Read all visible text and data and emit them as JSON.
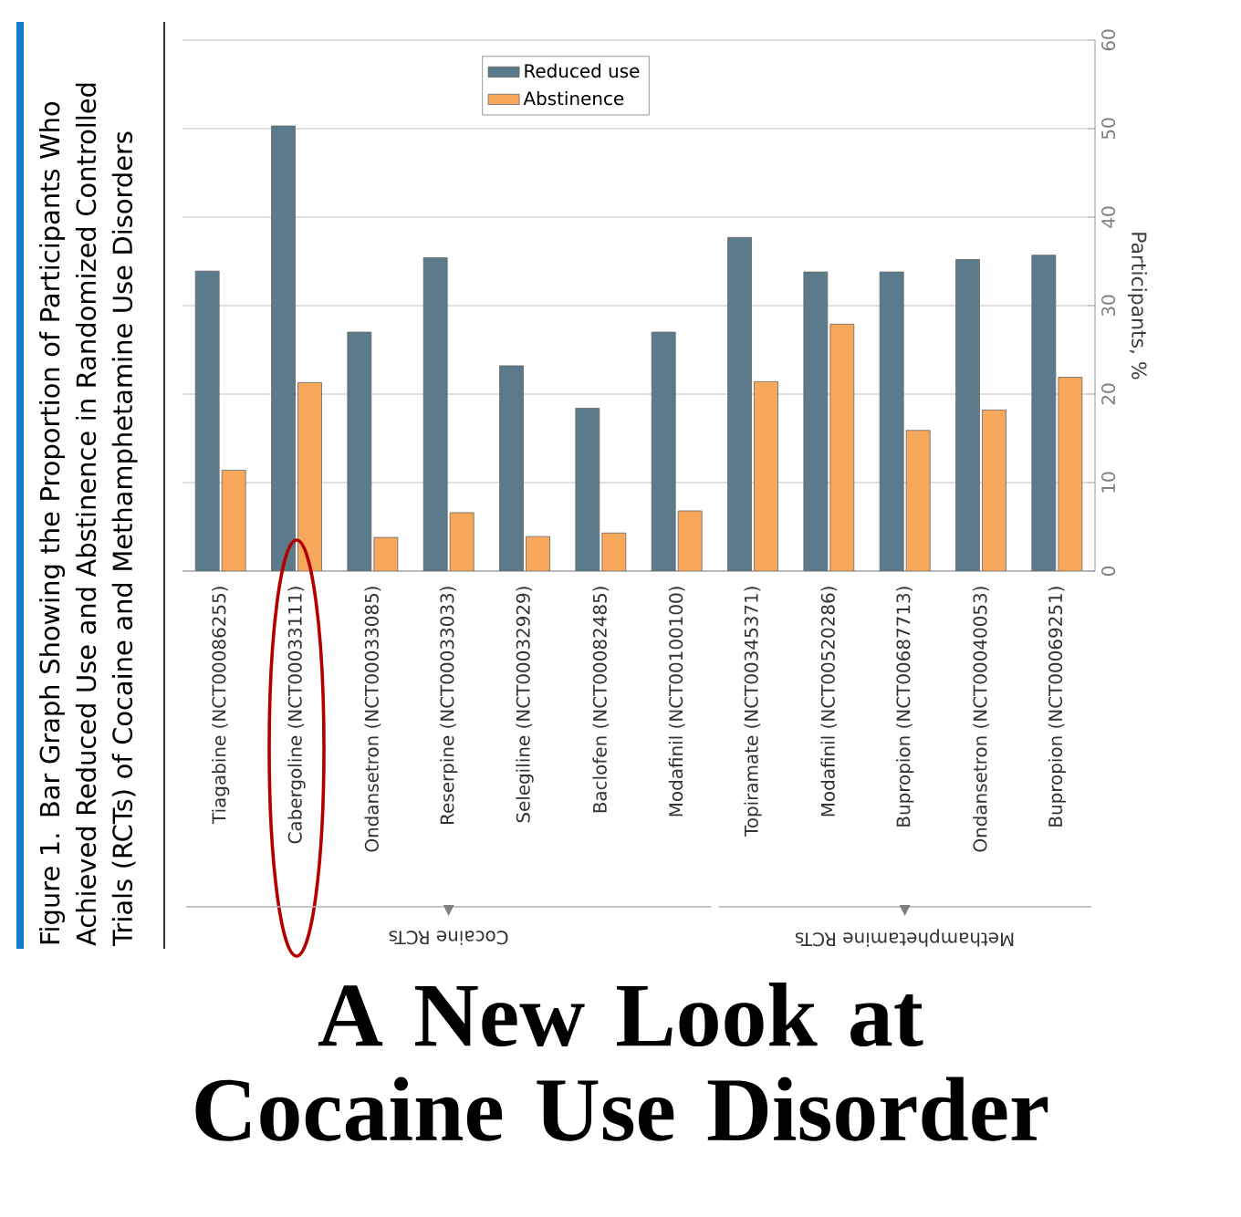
{
  "chart_data": {
    "type": "bar",
    "title": "A New Look at Cocaine Use Disorder",
    "subtitle": "Figure 1. Bar Graph Showing the Proportion of Participants Who Achieved Reduced Use and Abstinence in Randomized Controlled Trials (RCTs) of Cocaine and Methamphetamine Use Disorders",
    "ylabel": "Participants, %",
    "categories": [
      "Tiagabine (NCT00086255)",
      "Cabergoline (NCT00033111)",
      "Ondansetron (NCT00033085)",
      "Reserpine (NCT00033033)",
      "Selegiline (NCT00032929)",
      "Baclofen (NCT00082485)",
      "Modafinil (NCT00100100)",
      "Topiramate (NCT00345371)",
      "Modafinil (NCT00520286)",
      "Bupropion (NCT00687713)",
      "Ondansetron (NCT00040053)",
      "Bupropion (NCT00069251)"
    ],
    "series": [
      {
        "name": "Reduced use",
        "color": "#5b7b8c",
        "values": [
          33.9,
          50.3,
          27.0,
          35.4,
          23.2,
          18.4,
          27.0,
          37.7,
          33.8,
          33.8,
          35.2,
          35.7
        ]
      },
      {
        "name": "Abstinence",
        "color": "#f7a85a",
        "values": [
          11.4,
          21.3,
          3.8,
          6.6,
          3.9,
          4.3,
          6.8,
          21.4,
          27.9,
          15.9,
          18.2,
          21.9
        ]
      }
    ],
    "ylim": [
      0,
      60
    ],
    "yticks": [
      0,
      10,
      20,
      30,
      40,
      50,
      60
    ],
    "grid": "y",
    "legend": "top",
    "annotations": [
      "Cocaine RCTs",
      "Methamphetamine RCTs"
    ]
  }
}
